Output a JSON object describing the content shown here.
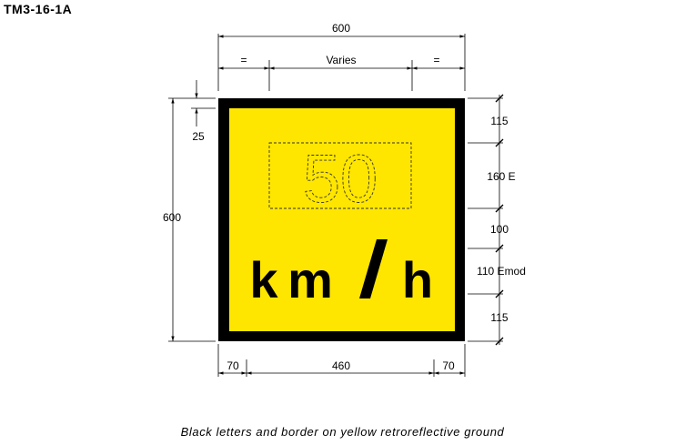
{
  "drawing_code": "TM3-16-1A",
  "sign": {
    "speed_value": "50",
    "unit": "km/h",
    "unit_chars": [
      "k",
      "m",
      "/",
      "h"
    ],
    "colors": {
      "ground": "#FFE600",
      "legend": "#000000",
      "border": "#000000"
    }
  },
  "dimensions": {
    "overall_width": "600",
    "overall_height": "600",
    "top_left_eq": "=",
    "top_varies": "Varies",
    "top_right_eq": "=",
    "border": "25",
    "right_top": "115",
    "right_numeral": "160 E",
    "right_gap": "100",
    "right_unit": "110 Emod",
    "right_bottom": "115",
    "bottom_left": "70",
    "bottom_middle": "460",
    "bottom_right": "70"
  },
  "caption": "Black letters and border on yellow retroreflective ground"
}
